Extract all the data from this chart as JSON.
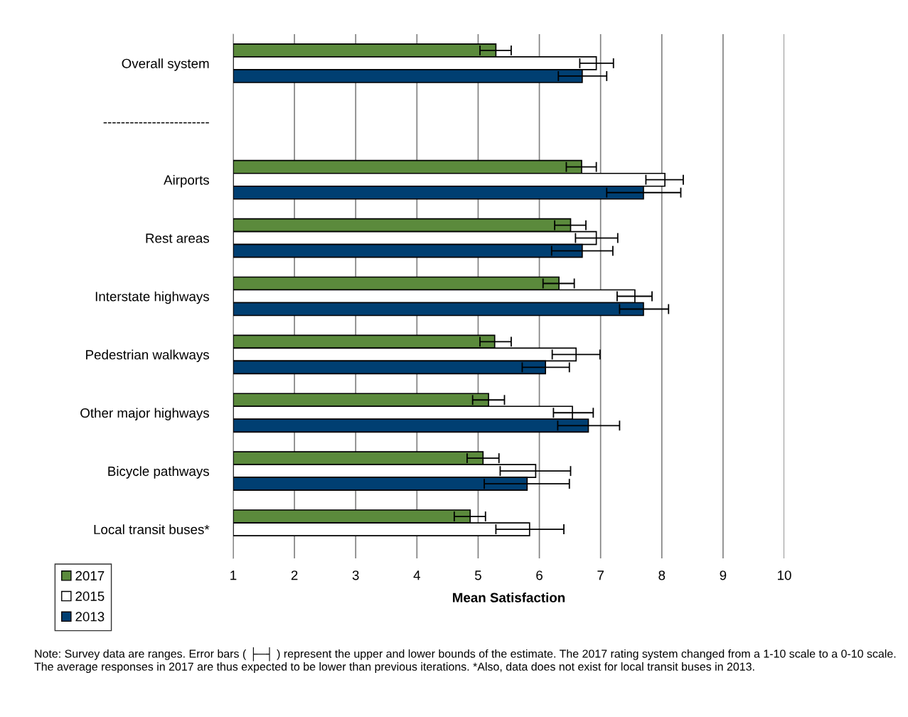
{
  "chart_data": {
    "type": "bar",
    "orientation": "horizontal",
    "xlabel": "Mean Satisfaction",
    "categories": [
      "Overall system",
      "------------------------",
      "Airports",
      "Rest areas",
      "Interstate highways",
      "Pedestrian walkways",
      "Other major highways",
      "Bicycle pathways",
      "Local transit buses*"
    ],
    "series": [
      {
        "name": "2017",
        "color": "#5b8a3c",
        "values": [
          5.29,
          null,
          6.69,
          6.51,
          6.32,
          5.27,
          5.17,
          5.08,
          4.87
        ],
        "errors": [
          [
            5.03,
            5.54
          ],
          null,
          [
            6.44,
            6.93
          ],
          [
            6.25,
            6.76
          ],
          [
            6.06,
            6.57
          ],
          [
            5.03,
            5.54
          ],
          [
            4.91,
            5.43
          ],
          [
            4.82,
            5.34
          ],
          [
            4.61,
            5.12
          ]
        ]
      },
      {
        "name": "2015",
        "color": "#ffffff",
        "values": [
          6.93,
          null,
          8.05,
          6.93,
          7.56,
          6.6,
          6.54,
          5.94,
          5.84
        ],
        "errors": [
          [
            6.66,
            7.21
          ],
          null,
          [
            7.74,
            8.35
          ],
          [
            6.59,
            7.28
          ],
          [
            7.27,
            7.84
          ],
          [
            6.21,
            6.99
          ],
          [
            6.23,
            6.88
          ],
          [
            5.36,
            6.51
          ],
          [
            5.29,
            6.4
          ]
        ]
      },
      {
        "name": "2013",
        "color": "#003f72",
        "values": [
          6.7,
          null,
          7.7,
          6.7,
          7.7,
          6.1,
          6.8,
          5.8,
          null
        ],
        "errors": [
          [
            6.31,
            7.1
          ],
          null,
          [
            7.1,
            8.31
          ],
          [
            6.2,
            7.2
          ],
          [
            7.31,
            8.11
          ],
          [
            5.72,
            6.49
          ],
          [
            6.3,
            7.31
          ],
          [
            5.1,
            6.49
          ],
          null
        ]
      }
    ],
    "xlim": [
      1,
      10
    ],
    "xticks": [
      1,
      2,
      3,
      4,
      5,
      6,
      7,
      8,
      9,
      10
    ],
    "grid": "x",
    "legend": "bottom left",
    "annotations": [
      "Note: Survey data are ranges. Error bars ( ├─┤ ) represent the upper and lower bounds of the estimate. The 2017 rating system changed from a 1-10 scale to a 0-10 scale. The average responses in 2017 are thus expected to be lower than previous iterations. *Also, data does not exist for local transit buses in 2013."
    ]
  }
}
